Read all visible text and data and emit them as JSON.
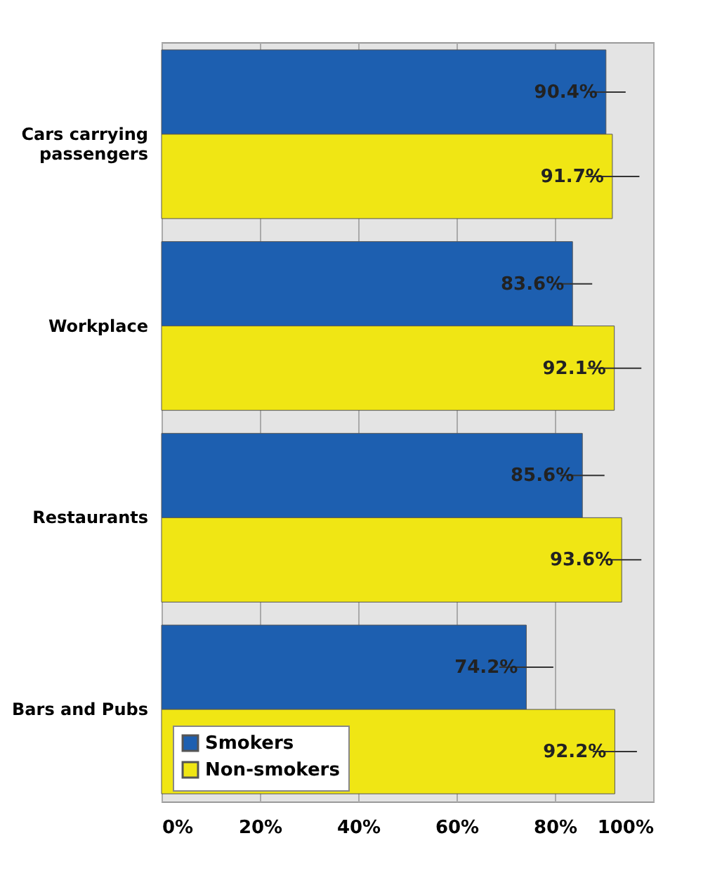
{
  "chart_data": {
    "type": "bar",
    "orientation": "horizontal",
    "categories": [
      "Cars carrying passengers",
      "Workplace",
      "Restaurants",
      "Bars and Pubs"
    ],
    "series": [
      {
        "name": "Smokers",
        "color": "#1d5fb0",
        "values": [
          90.4,
          83.6,
          85.6,
          74.2
        ],
        "errors": [
          4,
          4,
          4.5,
          5.5
        ],
        "value_labels": [
          "90.4%",
          "83.6%",
          "85.6%",
          "74.2%"
        ]
      },
      {
        "name": "Non-smokers",
        "color": "#f0e614",
        "values": [
          91.7,
          92.1,
          93.6,
          92.2
        ],
        "errors": [
          5.5,
          5.5,
          4,
          4.5
        ],
        "value_labels": [
          "91.7%",
          "92.1%",
          "93.6%",
          "92.2%"
        ]
      }
    ],
    "xlim": [
      0,
      100
    ],
    "xticks": [
      {
        "value": 0,
        "label": "0%"
      },
      {
        "value": 20,
        "label": "20%"
      },
      {
        "value": 40,
        "label": "40%"
      },
      {
        "value": 60,
        "label": "60%"
      },
      {
        "value": 80,
        "label": "80%"
      },
      {
        "value": 100,
        "label": "100%"
      }
    ],
    "grid": "x",
    "legend": "bottom left"
  }
}
